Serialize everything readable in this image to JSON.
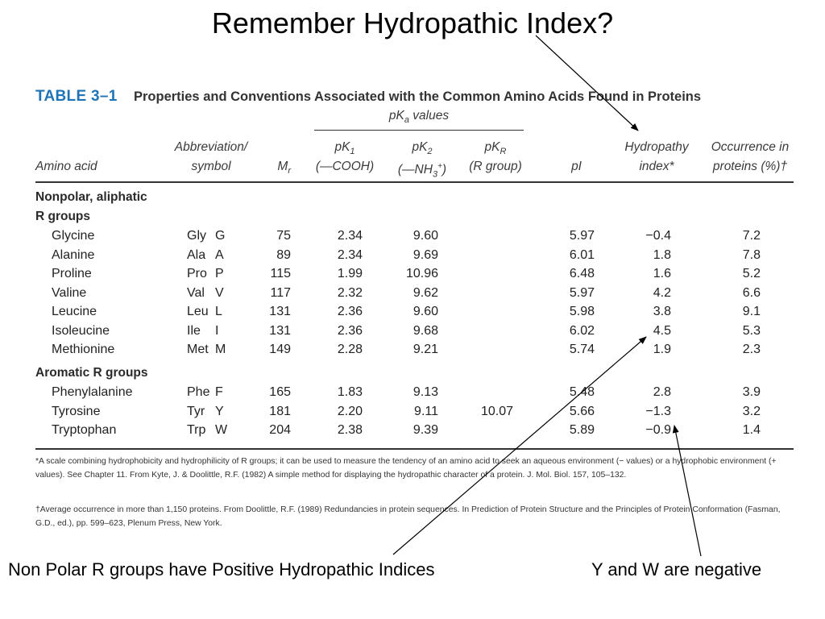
{
  "slide_title": "Remember Hydropathic Index?",
  "table": {
    "label": "TABLE 3–1",
    "caption": "Properties and Conventions Associated with the Common Amino Acids Found in Proteins",
    "pka_header": "pKa values",
    "headers": {
      "amino_acid": "Amino acid",
      "abbrev_1": "Abbreviation/",
      "abbrev_2": "symbol",
      "mr": "Mr",
      "pk1_1": "pK1",
      "pk1_2": "(—COOH)",
      "pk2_1": "pK2",
      "pk2_2": "(—NH3+)",
      "pkr_1": "pKR",
      "pkr_2": "(R group)",
      "pi": "pI",
      "hyd_1": "Hydropathy",
      "hyd_2": "index*",
      "occ_1": "Occurrence in",
      "occ_2": "proteins (%)†"
    },
    "groups": [
      {
        "title_1": "Nonpolar, aliphatic",
        "title_2": "R groups",
        "rows": [
          {
            "name": "Glycine",
            "abbr3": "Gly",
            "abbr1": "G",
            "mr": "75",
            "pk1": "2.34",
            "pk2": "9.60",
            "pkr": "",
            "pi": "5.97",
            "hyd": "−0.4",
            "occ": "7.2"
          },
          {
            "name": "Alanine",
            "abbr3": "Ala",
            "abbr1": "A",
            "mr": "89",
            "pk1": "2.34",
            "pk2": "9.69",
            "pkr": "",
            "pi": "6.01",
            "hyd": "1.8",
            "occ": "7.8"
          },
          {
            "name": "Proline",
            "abbr3": "Pro",
            "abbr1": "P",
            "mr": "115",
            "pk1": "1.99",
            "pk2": "10.96",
            "pkr": "",
            "pi": "6.48",
            "hyd": "1.6",
            "occ": "5.2"
          },
          {
            "name": "Valine",
            "abbr3": "Val",
            "abbr1": "V",
            "mr": "117",
            "pk1": "2.32",
            "pk2": "9.62",
            "pkr": "",
            "pi": "5.97",
            "hyd": "4.2",
            "occ": "6.6"
          },
          {
            "name": "Leucine",
            "abbr3": "Leu",
            "abbr1": "L",
            "mr": "131",
            "pk1": "2.36",
            "pk2": "9.60",
            "pkr": "",
            "pi": "5.98",
            "hyd": "3.8",
            "occ": "9.1"
          },
          {
            "name": "Isoleucine",
            "abbr3": "Ile",
            "abbr1": "I",
            "mr": "131",
            "pk1": "2.36",
            "pk2": "9.68",
            "pkr": "",
            "pi": "6.02",
            "hyd": "4.5",
            "occ": "5.3"
          },
          {
            "name": "Methionine",
            "abbr3": "Met",
            "abbr1": "M",
            "mr": "149",
            "pk1": "2.28",
            "pk2": "9.21",
            "pkr": "",
            "pi": "5.74",
            "hyd": "1.9",
            "occ": "2.3"
          }
        ]
      },
      {
        "title_1": "Aromatic R groups",
        "title_2": "",
        "rows": [
          {
            "name": "Phenylalanine",
            "abbr3": "Phe",
            "abbr1": "F",
            "mr": "165",
            "pk1": "1.83",
            "pk2": "9.13",
            "pkr": "",
            "pi": "5.48",
            "hyd": "2.8",
            "occ": "3.9"
          },
          {
            "name": "Tyrosine",
            "abbr3": "Tyr",
            "abbr1": "Y",
            "mr": "181",
            "pk1": "2.20",
            "pk2": "9.11",
            "pkr": "10.07",
            "pi": "5.66",
            "hyd": "−1.3",
            "occ": "3.2"
          },
          {
            "name": "Tryptophan",
            "abbr3": "Trp",
            "abbr1": "W",
            "mr": "204",
            "pk1": "2.38",
            "pk2": "9.39",
            "pkr": "",
            "pi": "5.89",
            "hyd": "−0.9",
            "occ": "1.4"
          }
        ]
      }
    ],
    "footnote_1": "*A scale combining hydrophobicity and hydrophilicity of R groups; it can be used to measure the tendency of an amino acid to seek an aqueous environment (− values) or a hydrophobic environment (+ values). See Chapter 11. From Kyte, J. & Doolittle, R.F. (1982) A simple method for displaying the hydropathic character of a protein. J. Mol. Biol. 157, 105–132.",
    "footnote_2": "†Average occurrence in more than 1,150 proteins. From Doolittle, R.F. (1989) Redundancies in protein sequences. In Prediction of Protein Structure and the Principles of Protein Conformation (Fasman, G.D., ed.), pp. 599–623, Plenum Press, New York."
  },
  "annotations": {
    "left_note": "Non Polar R groups have Positive Hydropathic Indices",
    "right_note": "Y and W are negative"
  },
  "colors": {
    "table_label": "#1f74b8",
    "text": "#000000"
  }
}
